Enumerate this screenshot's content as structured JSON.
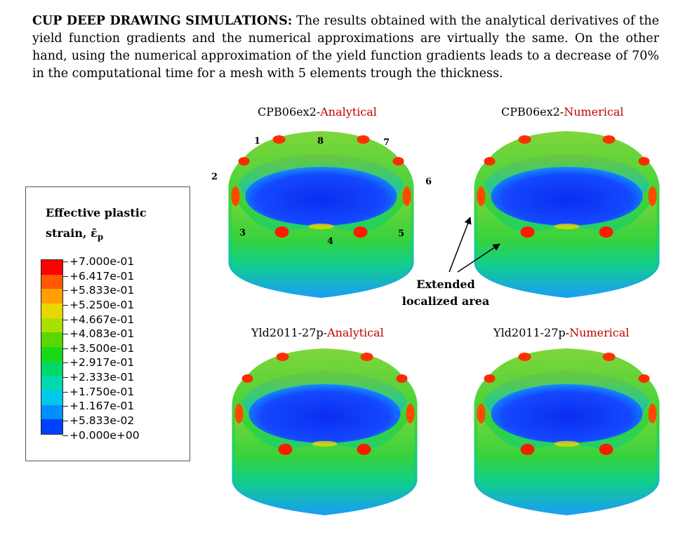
{
  "paragraph": {
    "heading": "CUP DEEP DRAWING SIMULATIONS:",
    "body": " The results obtained with the analytical derivatives of the yield function gradients and the numerical approximations are virtually the same. On the other hand, using the numerical approximation of the yield function gradients leads to a decrease of 70% in the computational time for a mesh with 5 elements trough the thickness."
  },
  "panels": [
    {
      "model": "CPB06ex2-",
      "method": "Analytical"
    },
    {
      "model": "CPB06ex2-",
      "method": "Numerical"
    },
    {
      "model": "Yld2011-27p-",
      "method": "Analytical"
    },
    {
      "model": "Yld2011-27p-",
      "method": "Numerical"
    }
  ],
  "ear_numbers": [
    "1",
    "8",
    "7",
    "2",
    "6",
    "3",
    "4",
    "5"
  ],
  "annotation": {
    "line1": "Extended",
    "line2": "localized area"
  },
  "legend": {
    "title_line1": "Effective plastic",
    "title_line2": "strain, ",
    "symbol": "ε̄",
    "subscript": "p",
    "labels": [
      "+7.000e-01",
      "+6.417e-01",
      "+5.833e-01",
      "+5.250e-01",
      "+4.667e-01",
      "+4.083e-01",
      "+3.500e-01",
      "+2.917e-01",
      "+2.333e-01",
      "+1.750e-01",
      "+1.167e-01",
      "+5.833e-02",
      "+0.000e+00"
    ],
    "colors": [
      "#ff0000",
      "#ff5a00",
      "#ffa000",
      "#e8d800",
      "#a8e000",
      "#58d800",
      "#18d818",
      "#00d868",
      "#00d8b0",
      "#00c8e8",
      "#0090ff",
      "#0040ff"
    ]
  },
  "colors": {
    "accent_red": "#c00000"
  }
}
